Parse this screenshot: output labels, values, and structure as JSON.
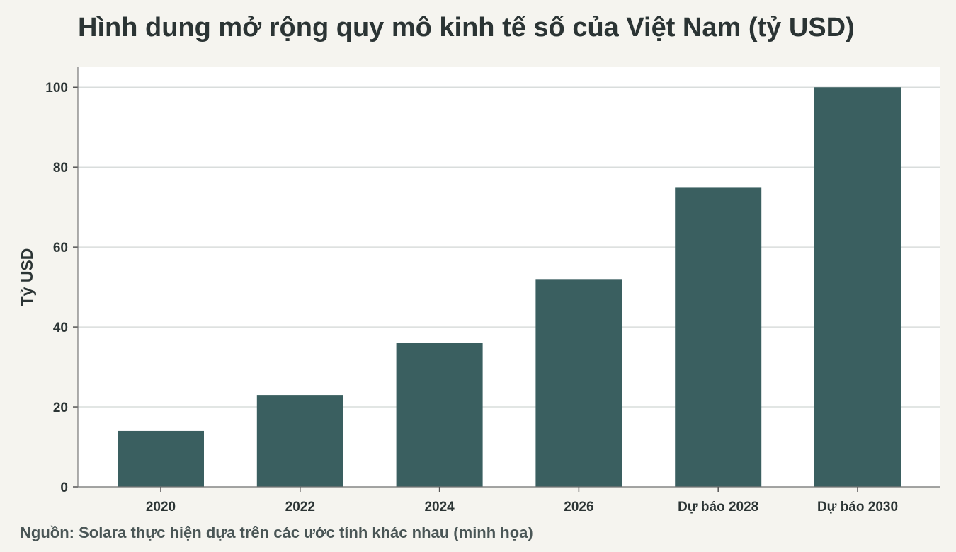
{
  "title": "Hình dung mở rộng quy mô kinh tế số của Việt Nam (tỷ USD)",
  "source": "Nguồn: Solara thực hiện dựa trên các ước tính khác nhau (minh họa)",
  "colors": {
    "bar": "#3a5f60",
    "grid": "#d9dddc",
    "plot_bg": "#ffffff",
    "page_bg": "#f5f4ef"
  },
  "chart_data": {
    "type": "bar",
    "categories": [
      "2020",
      "2022",
      "2024",
      "2026",
      "Dự báo 2028",
      "Dự báo 2030"
    ],
    "values": [
      14,
      23,
      36,
      52,
      75,
      100
    ],
    "ylabel": "Tỷ USD",
    "xlabel": "",
    "ylim": [
      0,
      105
    ],
    "yticks": [
      0,
      20,
      40,
      60,
      80,
      100
    ],
    "grid": true
  }
}
